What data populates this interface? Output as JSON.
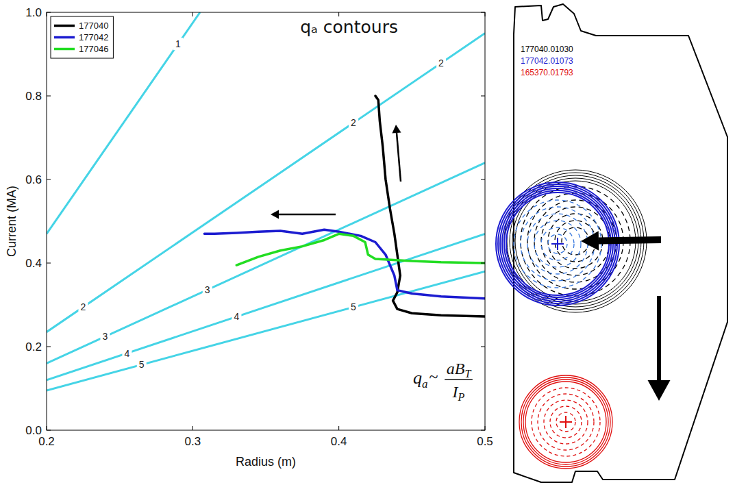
{
  "chart_data": {
    "type": "line",
    "title": "qₐ contours",
    "x_label": "Radius (m)",
    "y_label": "Current (MA)",
    "xlim": [
      0.2,
      0.5
    ],
    "xticks": [
      0.2,
      0.3,
      0.4,
      0.5
    ],
    "ylim": [
      0,
      1
    ],
    "yticks": [
      {
        "value": 0,
        "label": "0.0"
      },
      0.2,
      0.4,
      0.6,
      0.8,
      {
        "value": 1,
        "label": "1.0"
      }
    ],
    "grid": false,
    "legend": "upper left",
    "series": [
      {
        "name": "177040",
        "color": "#000000",
        "x": [
          0.5,
          0.47,
          0.45,
          0.44,
          0.437,
          0.44,
          0.442,
          0.44,
          0.438,
          0.435,
          0.432,
          0.43,
          0.428,
          0.427,
          0.425
        ],
        "values": [
          0.272,
          0.275,
          0.28,
          0.29,
          0.31,
          0.33,
          0.37,
          0.42,
          0.47,
          0.53,
          0.6,
          0.68,
          0.74,
          0.79,
          0.8
        ]
      },
      {
        "name": "177042",
        "color": "#1c1cd0",
        "x": [
          0.5,
          0.47,
          0.45,
          0.44,
          0.438,
          0.432,
          0.425,
          0.415,
          0.4,
          0.39,
          0.375,
          0.36,
          0.345,
          0.33,
          0.315,
          0.308
        ],
        "values": [
          0.315,
          0.32,
          0.327,
          0.335,
          0.37,
          0.42,
          0.45,
          0.465,
          0.475,
          0.48,
          0.47,
          0.477,
          0.475,
          0.472,
          0.47,
          0.47
        ]
      },
      {
        "name": "177046",
        "color": "#22dd22",
        "x": [
          0.5,
          0.47,
          0.45,
          0.425,
          0.42,
          0.418,
          0.41,
          0.4,
          0.39,
          0.375,
          0.36,
          0.345,
          0.33
        ],
        "values": [
          0.4,
          0.402,
          0.405,
          0.41,
          0.42,
          0.45,
          0.465,
          0.47,
          0.455,
          0.44,
          0.43,
          0.415,
          0.395
        ]
      }
    ],
    "contours": [
      {
        "q": 1,
        "color": "#45d4e6",
        "x": [
          0.2,
          0.305
        ],
        "values": [
          0.47,
          1.0
        ],
        "label_x": [
          0.29
        ]
      },
      {
        "q": 2,
        "color": "#45d4e6",
        "x": [
          0.2,
          0.5
        ],
        "values": [
          0.235,
          0.95
        ],
        "label_x": [
          0.225,
          0.41,
          0.47
        ]
      },
      {
        "q": 3,
        "color": "#45d4e6",
        "x": [
          0.2,
          0.5
        ],
        "values": [
          0.16,
          0.64
        ],
        "label_x": [
          0.24,
          0.31
        ]
      },
      {
        "q": 4,
        "color": "#45d4e6",
        "x": [
          0.2,
          0.5
        ],
        "values": [
          0.12,
          0.47
        ],
        "label_x": [
          0.255,
          0.33
        ]
      },
      {
        "q": 5,
        "color": "#45d4e6",
        "x": [
          0.2,
          0.5
        ],
        "values": [
          0.095,
          0.38
        ],
        "label_x": [
          0.265,
          0.41
        ]
      }
    ],
    "annotations": {
      "formula": {
        "lhs": "q",
        "lhs_sub": "a",
        "relation": "~",
        "numerator": "aB",
        "numerator_sub": "T",
        "denominator": "I",
        "denominator_sub": "P"
      }
    }
  },
  "diagram": {
    "labels": [
      {
        "text": "177040.01030",
        "color": "#000000"
      },
      {
        "text": "177042.01073",
        "color": "#1c1cd0"
      },
      {
        "text": "165370.01793",
        "color": "#e01010"
      }
    ]
  }
}
